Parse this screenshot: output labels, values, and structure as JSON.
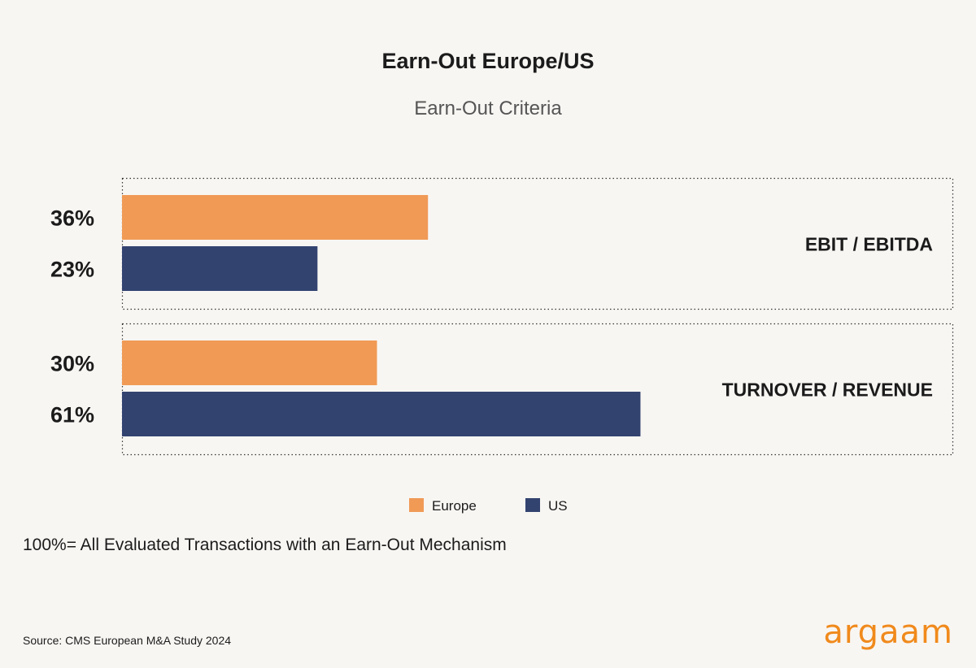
{
  "chart_data": {
    "type": "bar",
    "orientation": "horizontal",
    "title": "Earn-Out Europe/US",
    "subtitle": "Earn-Out Criteria",
    "categories": [
      "EBIT / EBITDA",
      "TURNOVER / REVENUE"
    ],
    "series": [
      {
        "name": "Europe",
        "values": [
          36,
          30
        ],
        "color": "#f09a56"
      },
      {
        "name": "US",
        "values": [
          23,
          61
        ],
        "color": "#334370"
      }
    ],
    "value_suffix": "%",
    "xlim": [
      0,
      100
    ],
    "grid": false,
    "legend_position": "bottom-center",
    "footnote": "100%= All Evaluated Transactions with an Earn-Out Mechanism",
    "source": "Source: CMS European M&A Study 2024"
  },
  "brand": {
    "logo_text": "argaam",
    "color": "#f08a1c"
  }
}
